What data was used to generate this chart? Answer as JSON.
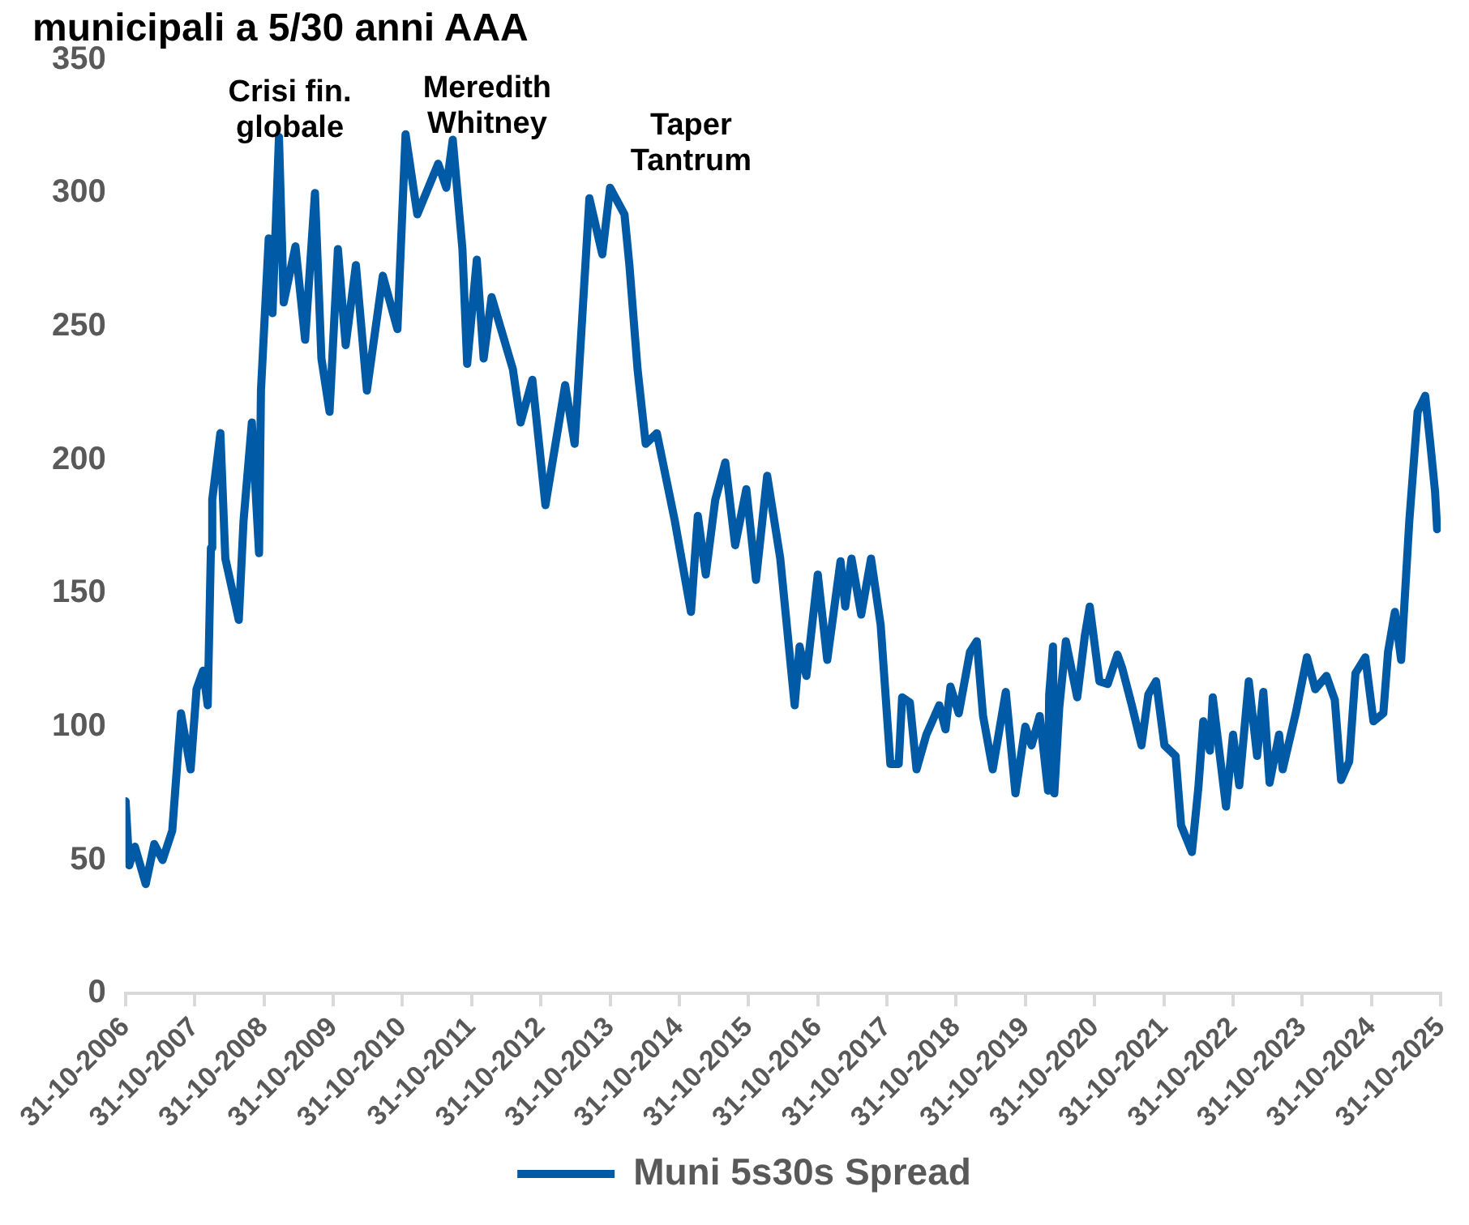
{
  "chart_data": {
    "type": "line",
    "title": "municipali a 5/30 anni AAA",
    "x": [
      "2006-11-01",
      "2006-11-20",
      "2006-12-20",
      "2007-02-15",
      "2007-04-01",
      "2007-05-15",
      "2007-07-05",
      "2007-08-20",
      "2007-10-10",
      "2007-11-10",
      "2007-12-15",
      "2008-01-08",
      "2008-01-25",
      "2008-02-01",
      "2008-03-15",
      "2008-04-10",
      "2008-06-20",
      "2008-07-15",
      "2008-08-28",
      "2008-10-05",
      "2008-10-15",
      "2008-11-25",
      "2008-12-15",
      "2009-01-18",
      "2009-02-12",
      "2009-04-15",
      "2009-06-05",
      "2009-07-27",
      "2009-08-30",
      "2009-10-12",
      "2009-11-25",
      "2010-01-05",
      "2010-02-28",
      "2010-04-27",
      "2010-07-20",
      "2010-10-05",
      "2010-11-17",
      "2011-01-18",
      "2011-05-08",
      "2011-06-20",
      "2011-07-24",
      "2011-09-13",
      "2011-10-08",
      "2011-11-28",
      "2012-01-03",
      "2012-02-14",
      "2012-06-05",
      "2012-07-16",
      "2012-09-16",
      "2012-11-24",
      "2013-03-08",
      "2013-04-27",
      "2013-07-14",
      "2013-09-20",
      "2013-10-31",
      "2014-01-15",
      "2014-02-10",
      "2014-03-25",
      "2014-05-07",
      "2014-07-05",
      "2014-10-08",
      "2015-01-01",
      "2015-02-06",
      "2015-03-20",
      "2015-05-09",
      "2015-07-01",
      "2015-08-22",
      "2015-10-20",
      "2015-12-10",
      "2016-02-07",
      "2016-04-16",
      "2016-07-01",
      "2016-07-27",
      "2016-09-01",
      "2016-10-31",
      "2016-12-20",
      "2017-02-28",
      "2017-03-25",
      "2017-04-27",
      "2017-06-17",
      "2017-08-08",
      "2017-09-28",
      "2017-11-18",
      "2018-01-01",
      "2018-01-19",
      "2018-03-01",
      "2018-04-05",
      "2018-05-27",
      "2018-08-03",
      "2018-09-05",
      "2018-10-01",
      "2018-11-14",
      "2019-01-12",
      "2019-02-17",
      "2019-03-22",
      "2019-05-12",
      "2019-07-20",
      "2019-09-09",
      "2019-10-31",
      "2019-12-03",
      "2020-01-15",
      "2020-02-28",
      "2020-03-05",
      "2020-03-25",
      "2020-04-01",
      "2020-04-27",
      "2020-06-01",
      "2020-07-31",
      "2020-09-09",
      "2020-10-05",
      "2020-11-25",
      "2021-01-08",
      "2021-02-28",
      "2021-03-25",
      "2021-05-15",
      "2021-07-05",
      "2021-08-10",
      "2021-09-20",
      "2021-11-03",
      "2022-01-01",
      "2022-01-30",
      "2022-03-28",
      "2022-05-01",
      "2022-05-27",
      "2022-07-01",
      "2022-07-16",
      "2022-09-24",
      "2022-10-31",
      "2022-12-03",
      "2023-01-22",
      "2023-03-07",
      "2023-04-09",
      "2023-05-12",
      "2023-07-01",
      "2023-07-20",
      "2023-09-27",
      "2023-11-25",
      "2024-01-08",
      "2024-03-07",
      "2024-04-20",
      "2024-05-23",
      "2024-07-05",
      "2024-08-07",
      "2024-09-28",
      "2024-11-10",
      "2025-01-01",
      "2025-01-26",
      "2025-03-03",
      "2025-04-05",
      "2025-05-18",
      "2025-07-01",
      "2025-08-10",
      "2025-09-06",
      "2025-10-01",
      "2025-10-12"
    ],
    "series": [
      {
        "name": "Muni 5s30s Spread",
        "color": "#005aa5",
        "values": [
          72,
          48,
          55,
          41,
          56,
          50,
          61,
          105,
          84,
          114,
          121,
          108,
          167,
          185,
          210,
          163,
          140,
          177,
          214,
          165,
          226,
          283,
          255,
          321,
          259,
          280,
          245,
          300,
          238,
          218,
          279,
          243,
          273,
          226,
          269,
          249,
          322,
          292,
          311,
          302,
          320,
          279,
          236,
          275,
          238,
          261,
          234,
          214,
          230,
          183,
          228,
          206,
          298,
          277,
          302,
          292,
          273,
          234,
          206,
          210,
          177,
          143,
          179,
          157,
          185,
          199,
          168,
          189,
          155,
          194,
          163,
          108,
          130,
          119,
          157,
          125,
          162,
          145,
          163,
          142,
          163,
          138,
          86,
          86,
          111,
          109,
          84,
          97,
          108,
          99,
          115,
          105,
          128,
          132,
          104,
          84,
          113,
          75,
          100,
          93,
          104,
          76,
          112,
          130,
          75,
          107,
          132,
          111,
          134,
          145,
          117,
          116,
          127,
          122,
          108,
          93,
          112,
          117,
          93,
          89,
          63,
          53,
          77,
          102,
          91,
          111,
          70,
          97,
          78,
          117,
          89,
          113,
          79,
          97,
          84,
          105,
          126,
          114,
          119,
          110,
          80,
          87,
          120,
          126,
          102,
          105,
          128,
          143,
          125,
          177,
          218,
          224,
          206,
          188,
          174
        ]
      }
    ],
    "xlim": [
      "2006-10-31",
      "2025-10-31"
    ],
    "xticks": [
      {
        "value": "2006-10-31",
        "label": "31-10-2006"
      },
      {
        "value": "2007-10-31",
        "label": "31-10-2007"
      },
      {
        "value": "2008-10-31",
        "label": "31-10-2008"
      },
      {
        "value": "2009-10-31",
        "label": "31-10-2009"
      },
      {
        "value": "2010-10-31",
        "label": "31-10-2010"
      },
      {
        "value": "2011-10-31",
        "label": "31-10-2011"
      },
      {
        "value": "2012-10-31",
        "label": "31-10-2012"
      },
      {
        "value": "2013-10-31",
        "label": "31-10-2013"
      },
      {
        "value": "2014-10-31",
        "label": "31-10-2014"
      },
      {
        "value": "2015-10-31",
        "label": "31-10-2015"
      },
      {
        "value": "2016-10-31",
        "label": "31-10-2016"
      },
      {
        "value": "2017-10-31",
        "label": "31-10-2017"
      },
      {
        "value": "2018-10-31",
        "label": "31-10-2018"
      },
      {
        "value": "2019-10-31",
        "label": "31-10-2019"
      },
      {
        "value": "2020-10-31",
        "label": "31-10-2020"
      },
      {
        "value": "2021-10-31",
        "label": "31-10-2021"
      },
      {
        "value": "2022-10-31",
        "label": "31-10-2022"
      },
      {
        "value": "2023-10-31",
        "label": "31-10-2023"
      },
      {
        "value": "2024-10-31",
        "label": "31-10-2024"
      },
      {
        "value": "2025-10-31",
        "label": "31-10-2025"
      }
    ],
    "ylim": [
      0,
      350
    ],
    "yticks": [
      0,
      50,
      100,
      150,
      200,
      250,
      300,
      350
    ],
    "annotations": [
      "Crisi fin.\nglobale",
      "Meredith\nWhitney",
      "Taper\nTantrum"
    ],
    "grid": false,
    "legend": "bottom",
    "marker": "none",
    "line_style": "solid"
  }
}
